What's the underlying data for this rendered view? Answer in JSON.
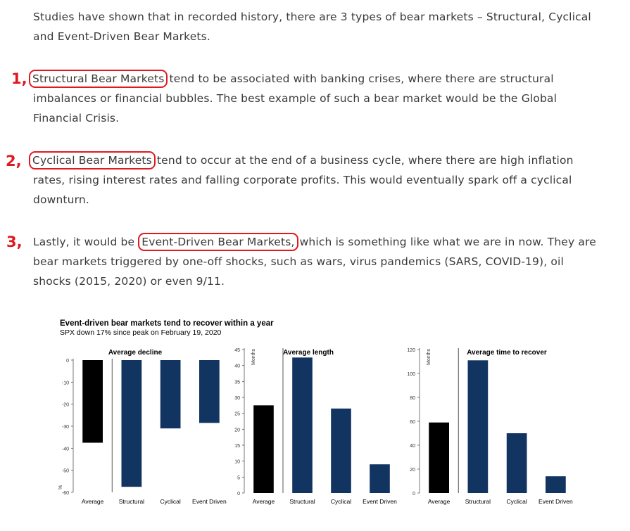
{
  "intro": "Studies have shown that in recorded history, there are 3 types of bear markets – Structural, Cyclical and Event-Driven Bear Markets.",
  "items": [
    {
      "number": "1,",
      "term": "Structural Bear Markets",
      "pre": "",
      "post": " tend to be associated with banking crises, where there are structural imbalances or financial bubbles. The best example of such a bear market would be the Global Financial Crisis."
    },
    {
      "number": "2,",
      "term": "Cyclical Bear Markets",
      "pre": "",
      "post": " tend to occur at the end of a business cycle, where there are high inflation rates, rising interest rates and falling corporate profits. This would eventually spark off a cyclical downturn."
    },
    {
      "number": "3,",
      "term": "Event-Driven Bear Markets,",
      "pre": "Lastly, it would be ",
      "post": " which is something like what we are in now. They are bear markets triggered by one-off shocks, such as wars, virus pandemics (SARS, COVID-19), oil shocks (2015, 2020) or even 9/11."
    }
  ],
  "colors": {
    "highlight": "#e0191f",
    "bar_dark": "#123461",
    "bar_black": "#000000"
  },
  "chart_data": [
    {
      "type": "bar",
      "title": "Event-driven bear markets tend to recover within a year",
      "subtitle": "SPX down 17% since peak on February 19, 2020",
      "panel_title": "Average decline",
      "ylabel": "%",
      "categories": [
        "Average",
        "Structural",
        "Cyclical",
        "Event Driven"
      ],
      "values": [
        -37.5,
        -57.5,
        -31,
        -28.5
      ],
      "ylim": [
        -60,
        0
      ],
      "yticks": [
        0,
        -10,
        -20,
        -30,
        -40,
        -50,
        -60
      ],
      "grid": false
    },
    {
      "type": "bar",
      "panel_title": "Average length",
      "ylabel": "Months",
      "categories": [
        "Average",
        "Structural",
        "Cyclical",
        "Event Driven"
      ],
      "values": [
        27.5,
        42.5,
        26.5,
        9
      ],
      "ylim": [
        0,
        45
      ],
      "yticks": [
        0,
        5,
        10,
        15,
        20,
        25,
        30,
        35,
        40,
        45
      ],
      "grid": false
    },
    {
      "type": "bar",
      "panel_title": "Average time to recover",
      "ylabel": "Months",
      "categories": [
        "Average",
        "Structural",
        "Cyclical",
        "Event Driven"
      ],
      "values": [
        59,
        111,
        50,
        14
      ],
      "ylim": [
        0,
        120
      ],
      "yticks": [
        0,
        20,
        40,
        60,
        80,
        100,
        120
      ],
      "grid": false
    }
  ]
}
